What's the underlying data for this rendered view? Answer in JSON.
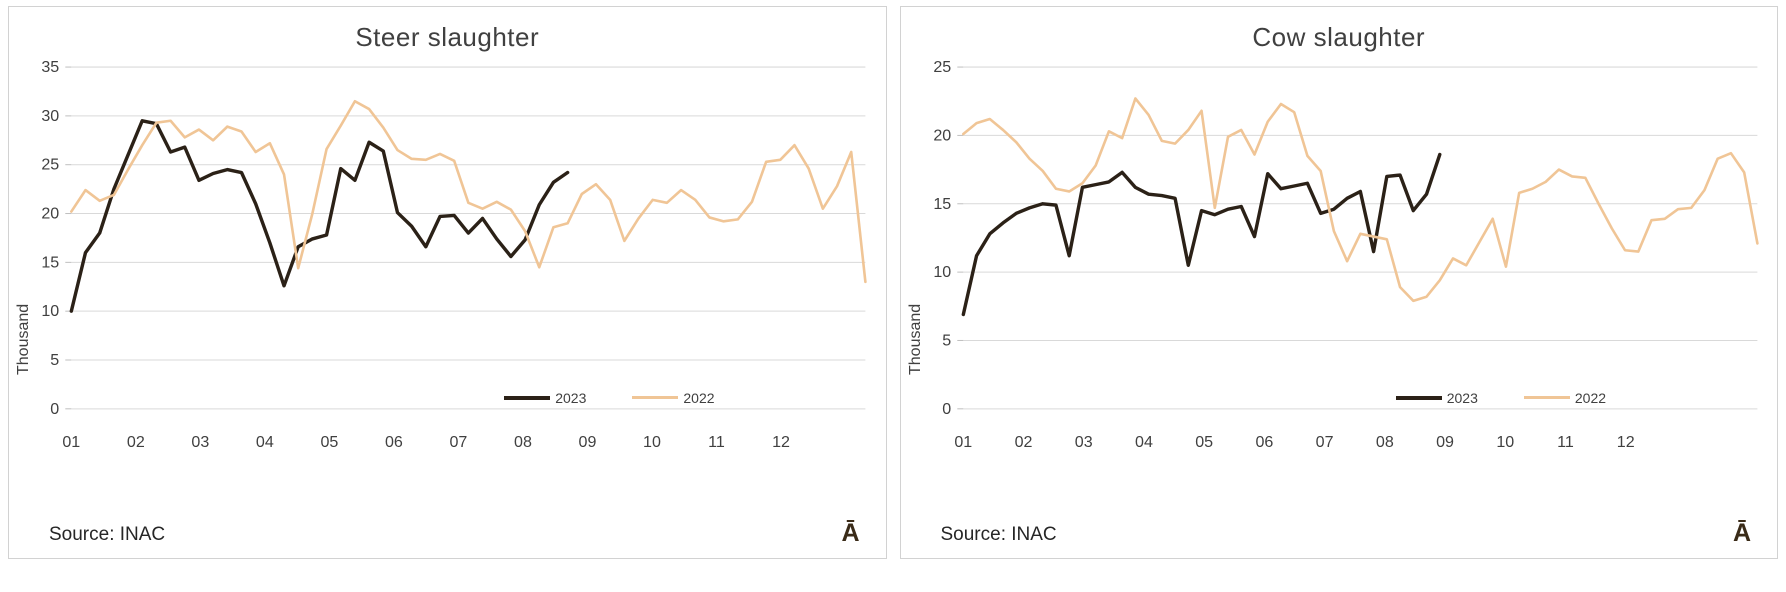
{
  "chart_data": [
    {
      "type": "line",
      "title": "Steer slaughter",
      "ylabel": "Thousand",
      "xlabel": "",
      "ylim": [
        0,
        35
      ],
      "y_ticks": [
        0,
        5,
        10,
        15,
        20,
        25,
        30,
        35
      ],
      "categories": [
        "01",
        "02",
        "03",
        "04",
        "05",
        "06",
        "07",
        "08",
        "09",
        "10",
        "11",
        "12"
      ],
      "x_unit": "week",
      "grid": true,
      "legend_position": "inside-bottom-right",
      "source": "Source: INAC",
      "corner_glyph": "Ā",
      "series": [
        {
          "name": "2023",
          "color": "#2b2117",
          "line_width": 3.4,
          "values": [
            10.0,
            16.0,
            18.0,
            22.5,
            26.0,
            29.5,
            29.2,
            26.3,
            26.8,
            23.4,
            24.1,
            24.5,
            24.2,
            21.0,
            17.0,
            12.6,
            16.6,
            17.4,
            17.8,
            24.6,
            23.4,
            27.3,
            26.4,
            20.1,
            18.7,
            16.6,
            19.7,
            19.8,
            18.0,
            19.5,
            17.4,
            15.6,
            17.3,
            20.9,
            23.2,
            24.2
          ]
        },
        {
          "name": "2022",
          "color": "#f0c596",
          "line_width": 2.6,
          "values": [
            20.2,
            22.4,
            21.3,
            21.9,
            24.5,
            27.0,
            29.3,
            29.5,
            27.8,
            28.6,
            27.5,
            28.9,
            28.4,
            26.3,
            27.2,
            24.0,
            14.4,
            20.0,
            26.6,
            29.0,
            31.5,
            30.7,
            28.8,
            26.5,
            25.6,
            25.5,
            26.1,
            25.4,
            21.1,
            20.5,
            21.2,
            20.4,
            18.2,
            14.5,
            18.6,
            19.0,
            22.0,
            23.0,
            21.4,
            17.2,
            19.5,
            21.4,
            21.1,
            22.4,
            21.4,
            19.6,
            19.2,
            19.4,
            21.2,
            25.3,
            25.5,
            27.0,
            24.6,
            20.5,
            22.8,
            26.3,
            13.0
          ]
        }
      ]
    },
    {
      "type": "line",
      "title": "Cow slaughter",
      "ylabel": "Thousand",
      "xlabel": "",
      "ylim": [
        0,
        25
      ],
      "y_ticks": [
        0,
        5,
        10,
        15,
        20,
        25
      ],
      "categories": [
        "01",
        "02",
        "03",
        "04",
        "05",
        "06",
        "07",
        "08",
        "09",
        "10",
        "11",
        "12"
      ],
      "x_unit": "week",
      "grid": true,
      "legend_position": "inside-bottom-right",
      "source": "Source: INAC",
      "corner_glyph": "Ā",
      "series": [
        {
          "name": "2023",
          "color": "#2b2117",
          "line_width": 3.4,
          "values": [
            6.9,
            11.2,
            12.8,
            13.6,
            14.3,
            14.7,
            15.0,
            14.9,
            11.2,
            16.2,
            16.4,
            16.6,
            17.3,
            16.2,
            15.7,
            15.6,
            15.4,
            10.5,
            14.5,
            14.2,
            14.6,
            14.8,
            12.6,
            17.2,
            16.1,
            16.3,
            16.5,
            14.3,
            14.6,
            15.4,
            15.9,
            11.5,
            17.0,
            17.1,
            14.5,
            15.7,
            18.6
          ]
        },
        {
          "name": "2022",
          "color": "#f0c596",
          "line_width": 2.6,
          "values": [
            20.1,
            20.9,
            21.2,
            20.4,
            19.5,
            18.3,
            17.4,
            16.1,
            15.9,
            16.5,
            17.8,
            20.3,
            19.8,
            22.7,
            21.5,
            19.6,
            19.4,
            20.4,
            21.8,
            14.7,
            19.9,
            20.4,
            18.6,
            21.0,
            22.3,
            21.7,
            18.5,
            17.4,
            13.0,
            10.8,
            12.8,
            12.6,
            12.4,
            8.9,
            7.9,
            8.2,
            9.4,
            11.0,
            10.5,
            12.2,
            13.9,
            10.4,
            15.8,
            16.1,
            16.6,
            17.5,
            17.0,
            16.9,
            15.0,
            13.2,
            11.6,
            11.5,
            13.8,
            13.9,
            14.6,
            14.7,
            16.0,
            18.3,
            18.7,
            17.3,
            12.1
          ]
        }
      ]
    }
  ],
  "style": {
    "gridline_color": "#d9d9d9",
    "tick_color": "#bfbfbf",
    "axis_text_color": "#404040",
    "title_color": "#404040",
    "weeks_per_month": 4.55
  }
}
